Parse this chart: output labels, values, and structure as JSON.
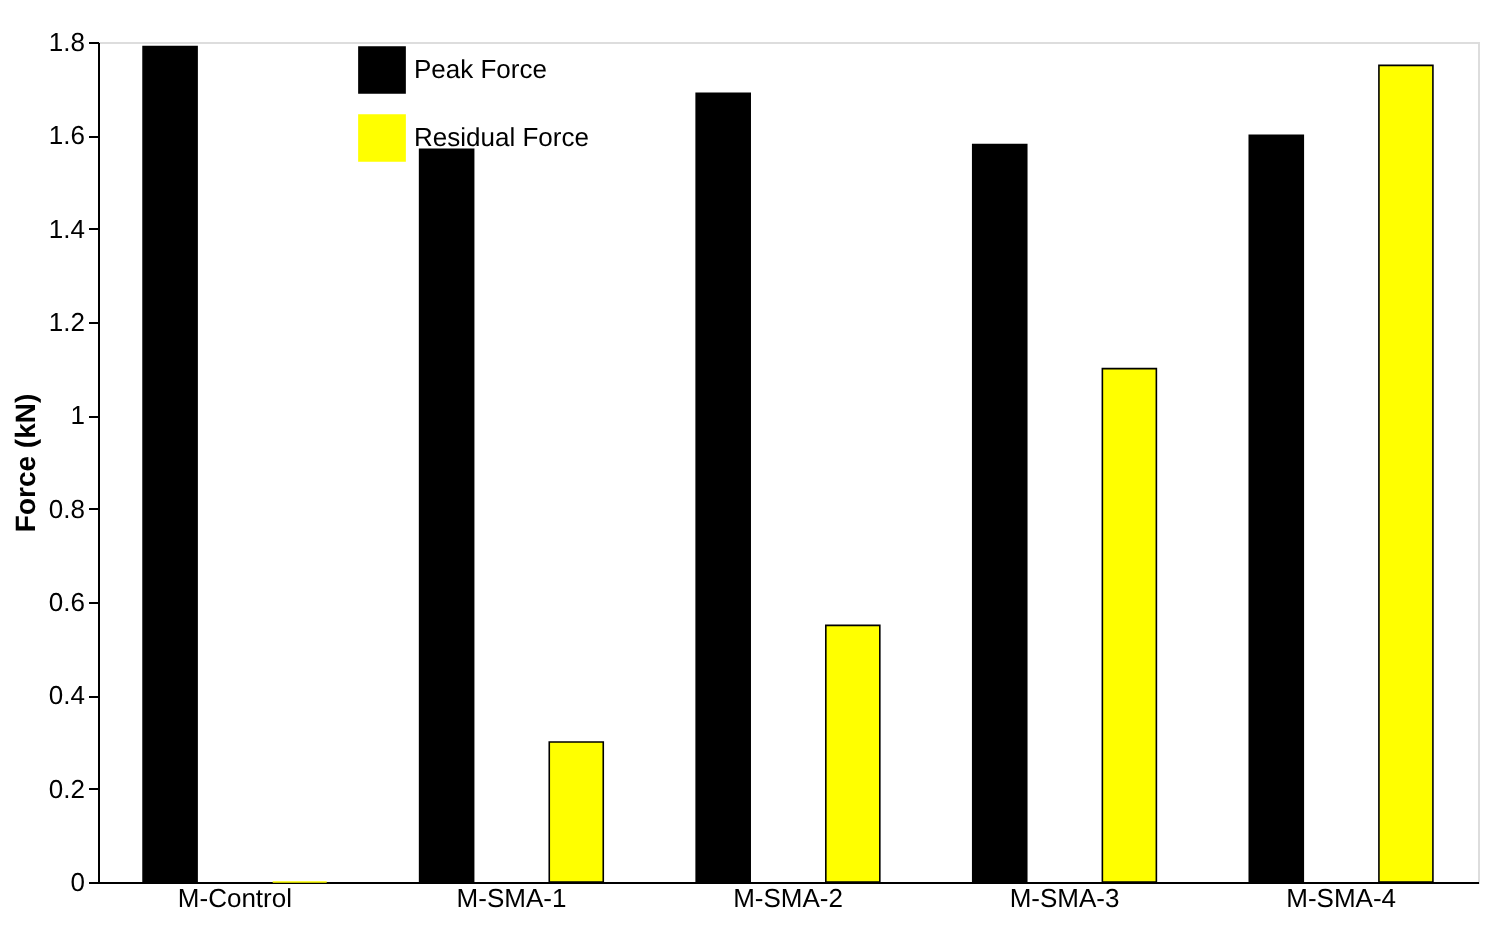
{
  "chart_data": {
    "type": "bar",
    "ylabel": "Force (kN)",
    "categories": [
      "M-Control",
      "M-SMA-1",
      "M-SMA-2",
      "M-SMA-3",
      "M-SMA-4"
    ],
    "series": [
      {
        "name": "Peak Force",
        "color": "#000000",
        "values": [
          1.79,
          1.57,
          1.69,
          1.58,
          1.6
        ]
      },
      {
        "name": "Residual Force",
        "color": "#ffff00",
        "values": [
          0,
          0.3,
          0.55,
          1.1,
          1.75
        ]
      }
    ],
    "ylim": [
      0,
      1.8
    ],
    "yticks": [
      0,
      0.2,
      0.4,
      0.6,
      0.8,
      1,
      1.2,
      1.4,
      1.6,
      1.8
    ],
    "grid": false,
    "legend": "top left"
  }
}
